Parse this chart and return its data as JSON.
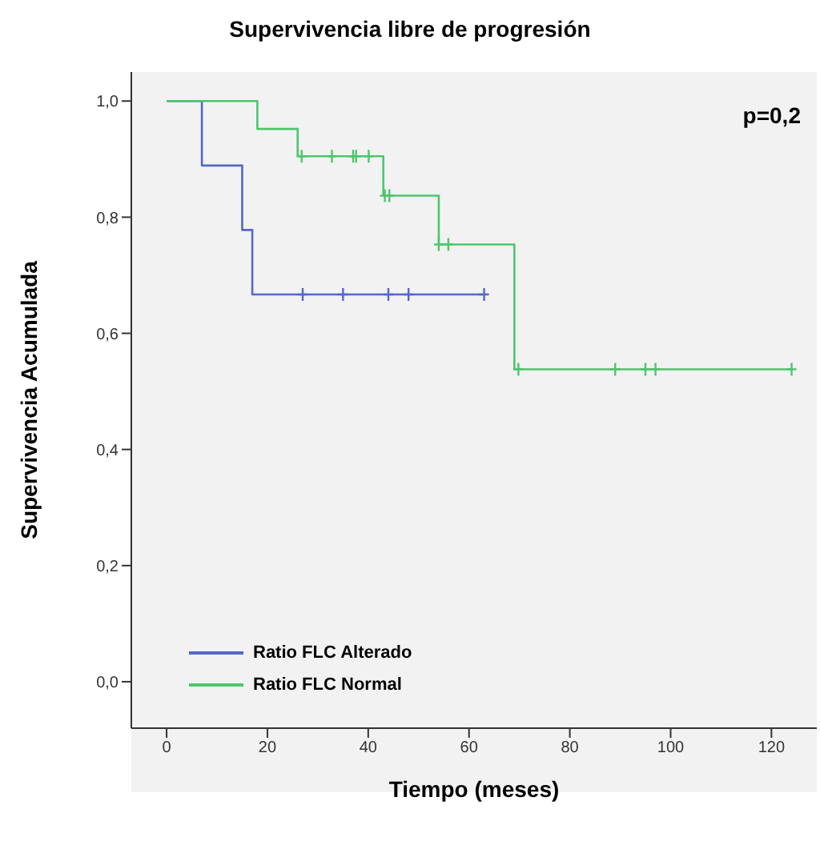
{
  "chart_data": {
    "type": "step",
    "title": "Supervivencia libre de progresión",
    "xlabel": "Tiempo (meses)",
    "ylabel": "Supervivencia Acumulada",
    "xlim": [
      -7,
      129
    ],
    "xticks": [
      0,
      20,
      40,
      60,
      80,
      100,
      120
    ],
    "ylim": [
      -0.08,
      1.05
    ],
    "yticks": [
      {
        "value": 0,
        "label": "0,0"
      },
      {
        "value": 0.2,
        "label": "0,2"
      },
      {
        "value": 0.4,
        "label": "0,4"
      },
      {
        "value": 0.6,
        "label": "0,6"
      },
      {
        "value": 0.8,
        "label": "0,8"
      },
      {
        "value": 1,
        "label": "1,0"
      }
    ],
    "grid": false,
    "legend": "bottom left",
    "annotations": [
      "p=0,2"
    ],
    "series": [
      {
        "name": "Ratio FLC Alterado",
        "color": "#5468c8",
        "marker": "none",
        "x": [
          0,
          7,
          15,
          17,
          63
        ],
        "values": [
          1,
          0.889,
          0.778,
          0.667,
          0.667
        ]
      },
      {
        "name": "Ratio FLC Normal",
        "color": "#4cc66e",
        "marker": "none",
        "x": [
          0,
          18,
          26,
          43,
          54,
          69,
          124
        ],
        "values": [
          1,
          0.952,
          0.905,
          0.837,
          0.753,
          0.538,
          0.538
        ]
      },
      {
        "type": "scatter",
        "color": "#5468c8",
        "marker": "cross",
        "x": [
          27,
          35,
          44,
          48,
          63
        ],
        "values": [
          0.667,
          0.667,
          0.667,
          0.667,
          0.667
        ]
      },
      {
        "type": "scatter",
        "color": "#4cc66e",
        "marker": "cross",
        "x": [
          26.8,
          32.8,
          37,
          37.6,
          40.1,
          43.3,
          44.2,
          54,
          55.9,
          69.8,
          89,
          95,
          97,
          124
        ],
        "values": [
          0.905,
          0.905,
          0.905,
          0.905,
          0.905,
          0.837,
          0.837,
          0.753,
          0.753,
          0.538,
          0.538,
          0.538,
          0.538,
          0.538
        ]
      }
    ]
  }
}
